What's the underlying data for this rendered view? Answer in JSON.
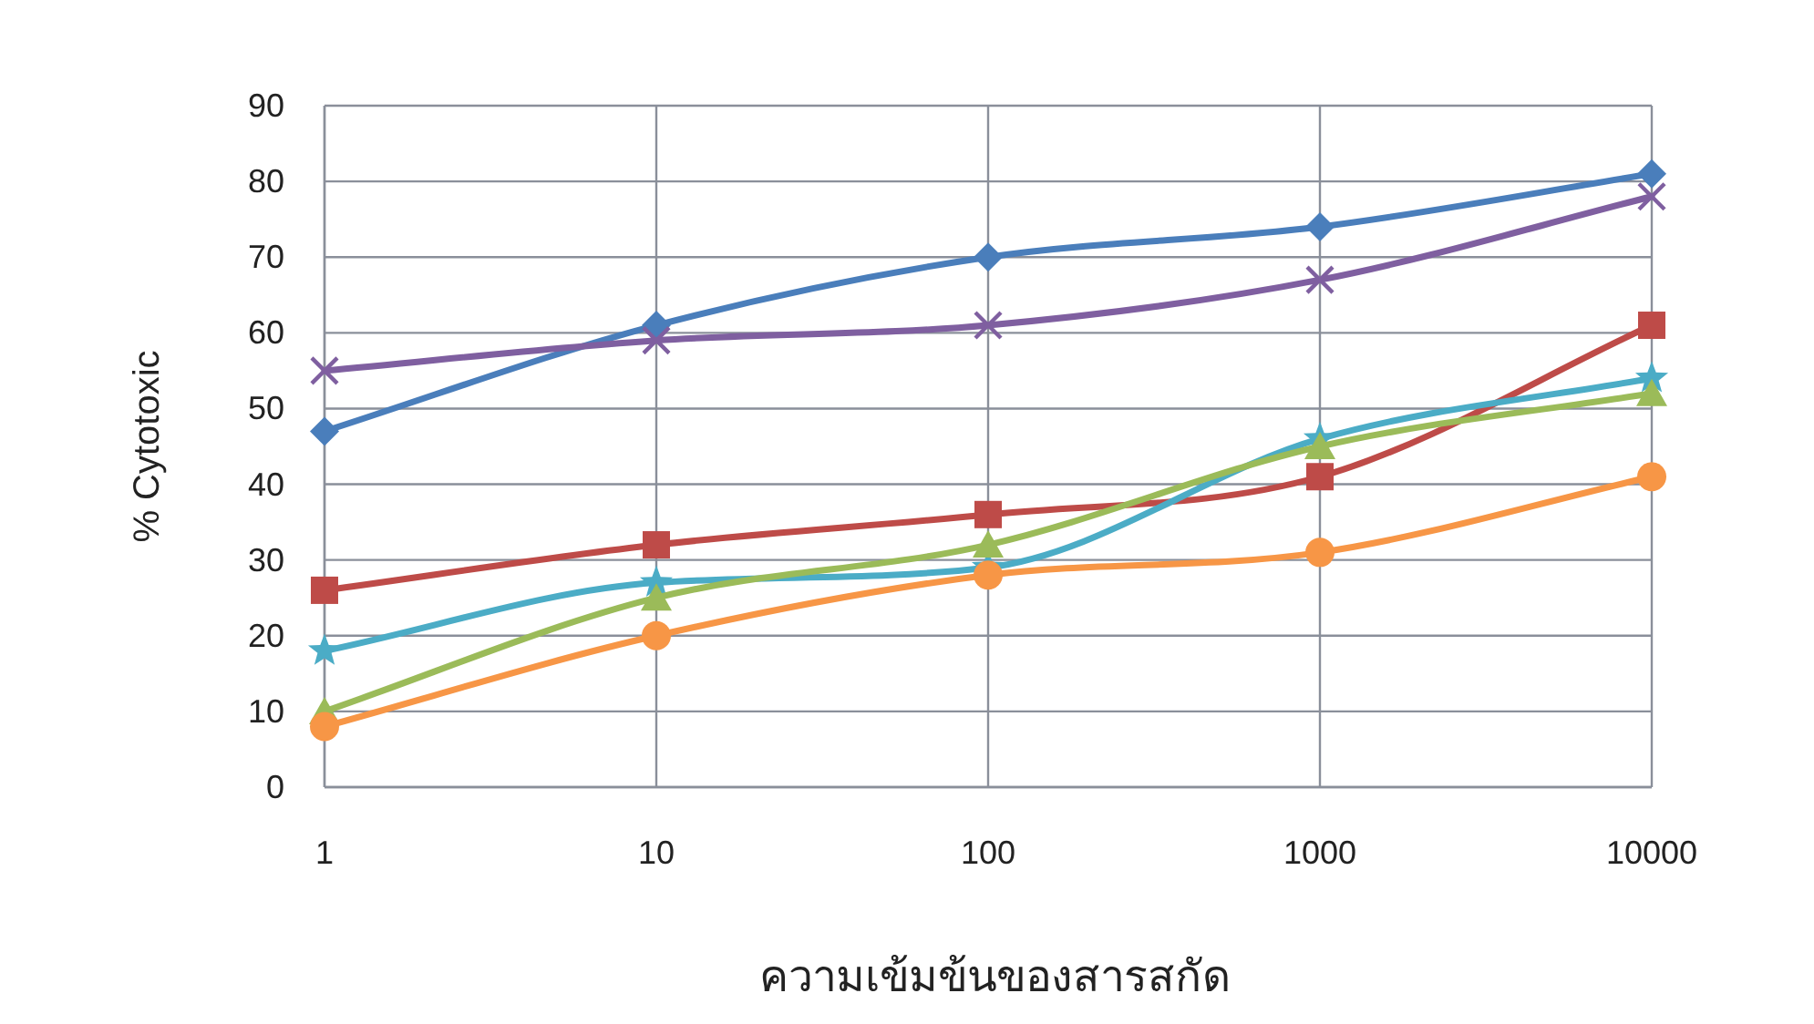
{
  "chart_data": {
    "type": "line",
    "xlabel": "ความเข้มข้นของสารสกัด",
    "ylabel": "% Cytotoxic",
    "x": [
      1,
      10,
      100,
      1000,
      10000
    ],
    "log": "x",
    "xlim": [
      1,
      10000
    ],
    "xticks": [
      1,
      10,
      100,
      1000,
      10000
    ],
    "ylim": [
      0,
      90
    ],
    "yticks": [
      0,
      10,
      20,
      30,
      40,
      50,
      60,
      70,
      80,
      90
    ],
    "grid": true,
    "line_style": "solid",
    "series": [
      {
        "color": "#4a7ebb",
        "marker": "diamond",
        "values": [
          47,
          61,
          70,
          74,
          81
        ]
      },
      {
        "color": "#7f5fa0",
        "marker": "cross",
        "values": [
          55,
          59,
          61,
          67,
          78
        ]
      },
      {
        "color": "#be4b48",
        "marker": "square",
        "values": [
          26,
          32,
          36,
          41,
          61
        ]
      },
      {
        "color": "#4bacc6",
        "marker": "star",
        "values": [
          18,
          27,
          29,
          46,
          54
        ]
      },
      {
        "color": "#9bbb59",
        "marker": "triangle",
        "values": [
          10,
          25,
          32,
          45,
          52
        ]
      },
      {
        "color": "#f79646",
        "marker": "circle",
        "values": [
          8,
          20,
          28,
          31,
          41
        ]
      }
    ]
  }
}
